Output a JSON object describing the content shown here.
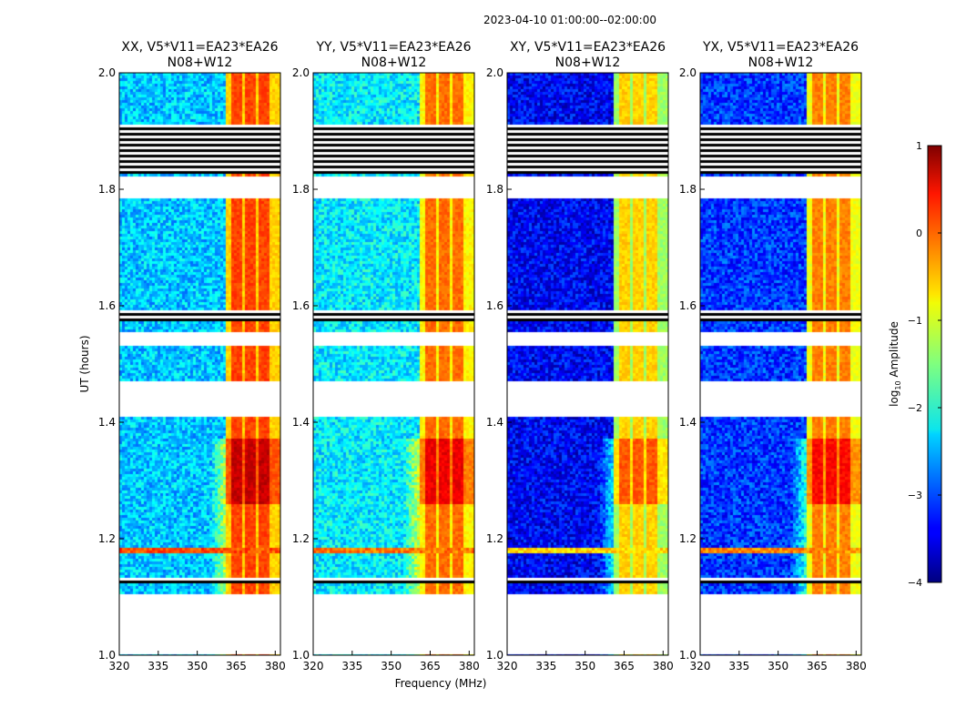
{
  "figure": {
    "suptitle": "2023-04-10  01:00:00--02:00:00"
  },
  "chart_data": {
    "type": "heatmap",
    "xlabel": "Frequency (MHz)",
    "ylabel": "UT (hours)",
    "xlim": [
      320,
      382
    ],
    "ylim": [
      1.0,
      2.0
    ],
    "xticks": [
      320,
      335,
      350,
      365,
      380
    ],
    "xtick_labels": [
      "320",
      "335",
      "350",
      "365",
      "380"
    ],
    "yticks": [
      1.0,
      1.2,
      1.4,
      1.6,
      1.8,
      2.0
    ],
    "ytick_labels": [
      "1.0",
      "1.2",
      "1.4",
      "1.6",
      "1.8",
      "2.0"
    ],
    "colormap": "jet",
    "panels": [
      {
        "pol": "XX",
        "title_line1": "XX, V5*V11=EA23*EA26",
        "title_line2": "N08+W12",
        "base_level": -2.4,
        "rfi_level": -0.3
      },
      {
        "pol": "YY",
        "title_line1": "YY, V5*V11=EA23*EA26",
        "title_line2": "N08+W12",
        "base_level": -2.2,
        "rfi_level": -0.5
      },
      {
        "pol": "XY",
        "title_line1": "XY, V5*V11=EA23*EA26",
        "title_line2": "N08+W12",
        "base_level": -3.4,
        "rfi_level": -1.0
      },
      {
        "pol": "YX",
        "title_line1": "YX, V5*V11=EA23*EA26",
        "title_line2": "N08+W12",
        "base_level": -3.1,
        "rfi_level": -0.6
      }
    ],
    "rfi_band_mhz": [
      361,
      382
    ],
    "rfi_stripes_mhz": [
      [
        363,
        367
      ],
      [
        368.5,
        372.5
      ],
      [
        374,
        378
      ]
    ],
    "rfi_strong_ut": [
      1.26,
      1.37
    ],
    "bright_line_ut": 1.18,
    "flagged_ut": [
      [
        1.0,
        1.1
      ],
      [
        1.53,
        1.555
      ],
      [
        1.41,
        1.47
      ],
      [
        1.785,
        1.82
      ]
    ],
    "black_ut": [
      [
        1.1,
        1.105
      ],
      [
        1.125,
        1.132
      ],
      [
        1.575,
        1.582
      ],
      [
        1.585,
        1.59
      ],
      [
        1.825,
        1.91
      ]
    ],
    "colorbar": {
      "label_prefix": "log",
      "label_sub": "10",
      "label_suffix": " Amplitude",
      "range": [
        -4,
        1
      ],
      "ticks": [
        1,
        0,
        -1,
        -2,
        -3,
        -4
      ],
      "tick_labels": [
        "1",
        "0",
        "−1",
        "−2",
        "−3",
        "−4"
      ]
    }
  }
}
